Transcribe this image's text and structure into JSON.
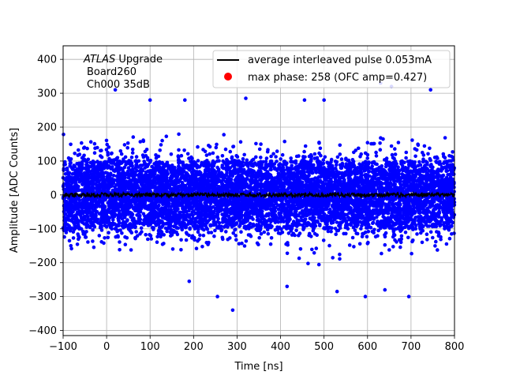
{
  "chart_data": {
    "type": "scatter",
    "title": "",
    "xlabel": "Time [ns]",
    "ylabel": "Amplitude [ADC Counts]",
    "xlim": [
      -100,
      800
    ],
    "ylim": [
      -415,
      440
    ],
    "x_ticks": [
      -100,
      0,
      100,
      200,
      300,
      400,
      500,
      600,
      700,
      800
    ],
    "y_ticks": [
      -400,
      -300,
      -200,
      -100,
      0,
      100,
      200,
      300,
      400
    ],
    "x_tick_labels": [
      "−100",
      "0",
      "100",
      "200",
      "300",
      "400",
      "500",
      "600",
      "700",
      "800"
    ],
    "y_tick_labels": [
      "−400",
      "−300",
      "−200",
      "−100",
      "0",
      "100",
      "200",
      "300",
      "400"
    ],
    "grid": true,
    "legend_position": "top-right",
    "annotation": {
      "experiment": "ATLAS",
      "experiment_suffix": " Upgrade",
      "board": "Board260",
      "channel": "Ch000 35dB"
    },
    "series": [
      {
        "name": "average interleaved pulse 0.053mA",
        "kind": "line",
        "color": "#000000",
        "x_range": [
          -100,
          800
        ],
        "approx_level": 0,
        "approx_noise": 6
      },
      {
        "name": "max phase: 258 (OFC amp=0.427)",
        "kind": "scatter",
        "color": "#ff0000",
        "points": []
      },
      {
        "name": "",
        "kind": "scatter",
        "color": "#0000ff",
        "x_range": [
          -100,
          800
        ],
        "approx_core_range": [
          -100,
          100
        ],
        "approx_spread_std": 60,
        "outliers": [
          {
            "x": 20,
            "y": 310
          },
          {
            "x": 100,
            "y": 280
          },
          {
            "x": 180,
            "y": 280
          },
          {
            "x": 320,
            "y": 285
          },
          {
            "x": 455,
            "y": 280
          },
          {
            "x": 500,
            "y": 280
          },
          {
            "x": 630,
            "y": 330
          },
          {
            "x": 655,
            "y": 320
          },
          {
            "x": 745,
            "y": 310
          },
          {
            "x": 290,
            "y": -340
          },
          {
            "x": 255,
            "y": -300
          },
          {
            "x": 530,
            "y": -285
          },
          {
            "x": 595,
            "y": -300
          },
          {
            "x": 640,
            "y": -280
          },
          {
            "x": 695,
            "y": -300
          },
          {
            "x": 190,
            "y": -255
          },
          {
            "x": 415,
            "y": -270
          }
        ]
      }
    ]
  }
}
